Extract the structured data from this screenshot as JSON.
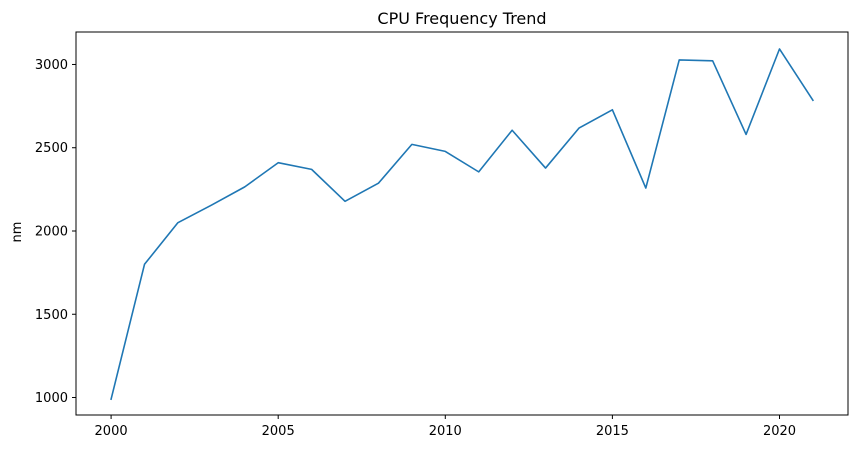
{
  "chart_data": {
    "type": "line",
    "title": "CPU Frequency Trend",
    "xlabel": "",
    "ylabel": "nm",
    "x": [
      2000,
      2001,
      2002,
      2003,
      2004,
      2005,
      2006,
      2007,
      2008,
      2009,
      2010,
      2011,
      2012,
      2013,
      2014,
      2015,
      2016,
      2017,
      2018,
      2019,
      2020,
      2021
    ],
    "series": [
      {
        "color": "#1f77b4",
        "values": [
          990,
          1800,
          2050,
          2155,
          2265,
          2410,
          2370,
          2178,
          2287,
          2520,
          2478,
          2355,
          2605,
          2378,
          2618,
          2728,
          2258,
          3027,
          3022,
          2580,
          3093,
          2785
        ]
      }
    ],
    "xticks": [
      "2000",
      "2005",
      "2010",
      "2015",
      "2020"
    ],
    "yticks": [
      "1000",
      "1500",
      "2000",
      "2500",
      "3000"
    ],
    "xlim": [
      1998.95,
      2022.05
    ],
    "ylim": [
      895,
      3195
    ],
    "grid": false,
    "legend": "none"
  }
}
